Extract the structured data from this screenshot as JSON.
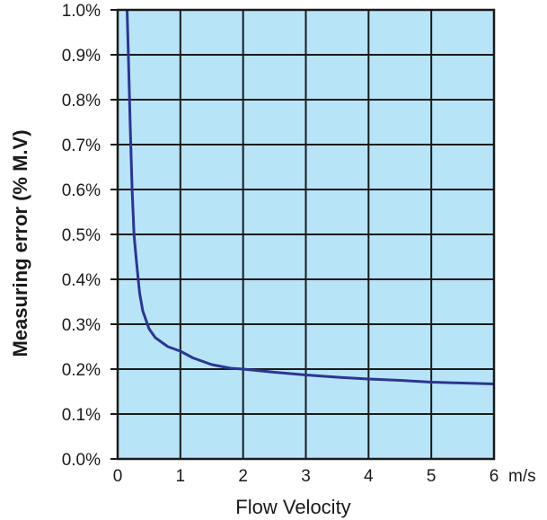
{
  "chart_data": {
    "type": "line",
    "title": "",
    "xlabel": "Flow Velocity",
    "ylabel": "Measuring error (% M.V)",
    "x_unit": "m/s",
    "xlim": [
      0,
      6
    ],
    "ylim": [
      0,
      1.0
    ],
    "x_ticks": [
      0,
      1,
      2,
      3,
      4,
      5,
      6
    ],
    "x_tick_labels": [
      "0",
      "1",
      "2",
      "3",
      "4",
      "5",
      "6"
    ],
    "y_ticks": [
      0,
      0.1,
      0.2,
      0.3,
      0.4,
      0.5,
      0.6,
      0.7,
      0.8,
      0.9,
      1.0
    ],
    "y_tick_labels": [
      "0.0%",
      "0.1%",
      "0.2%",
      "0.3%",
      "0.4%",
      "0.5%",
      "0.6%",
      "0.7%",
      "0.8%",
      "0.9%",
      "1.0%"
    ],
    "grid": true,
    "legend": "none",
    "colors": {
      "plot_background": "#b8e4f8",
      "grid": "#1a1a1a",
      "line": "#2b3594"
    },
    "series": [
      {
        "x": [
          0.15,
          0.17,
          0.2,
          0.23,
          0.26,
          0.3,
          0.35,
          0.4,
          0.5,
          0.6,
          0.7,
          0.8,
          1.0,
          1.2,
          1.5,
          1.8,
          2.0,
          2.5,
          3.0,
          3.5,
          4.0,
          4.5,
          5.0,
          5.5,
          6.0
        ],
        "y": [
          1.0,
          0.9,
          0.74,
          0.6,
          0.5,
          0.44,
          0.37,
          0.33,
          0.29,
          0.27,
          0.26,
          0.25,
          0.24,
          0.225,
          0.21,
          0.202,
          0.2,
          0.193,
          0.187,
          0.182,
          0.178,
          0.175,
          0.171,
          0.169,
          0.167
        ]
      }
    ]
  }
}
